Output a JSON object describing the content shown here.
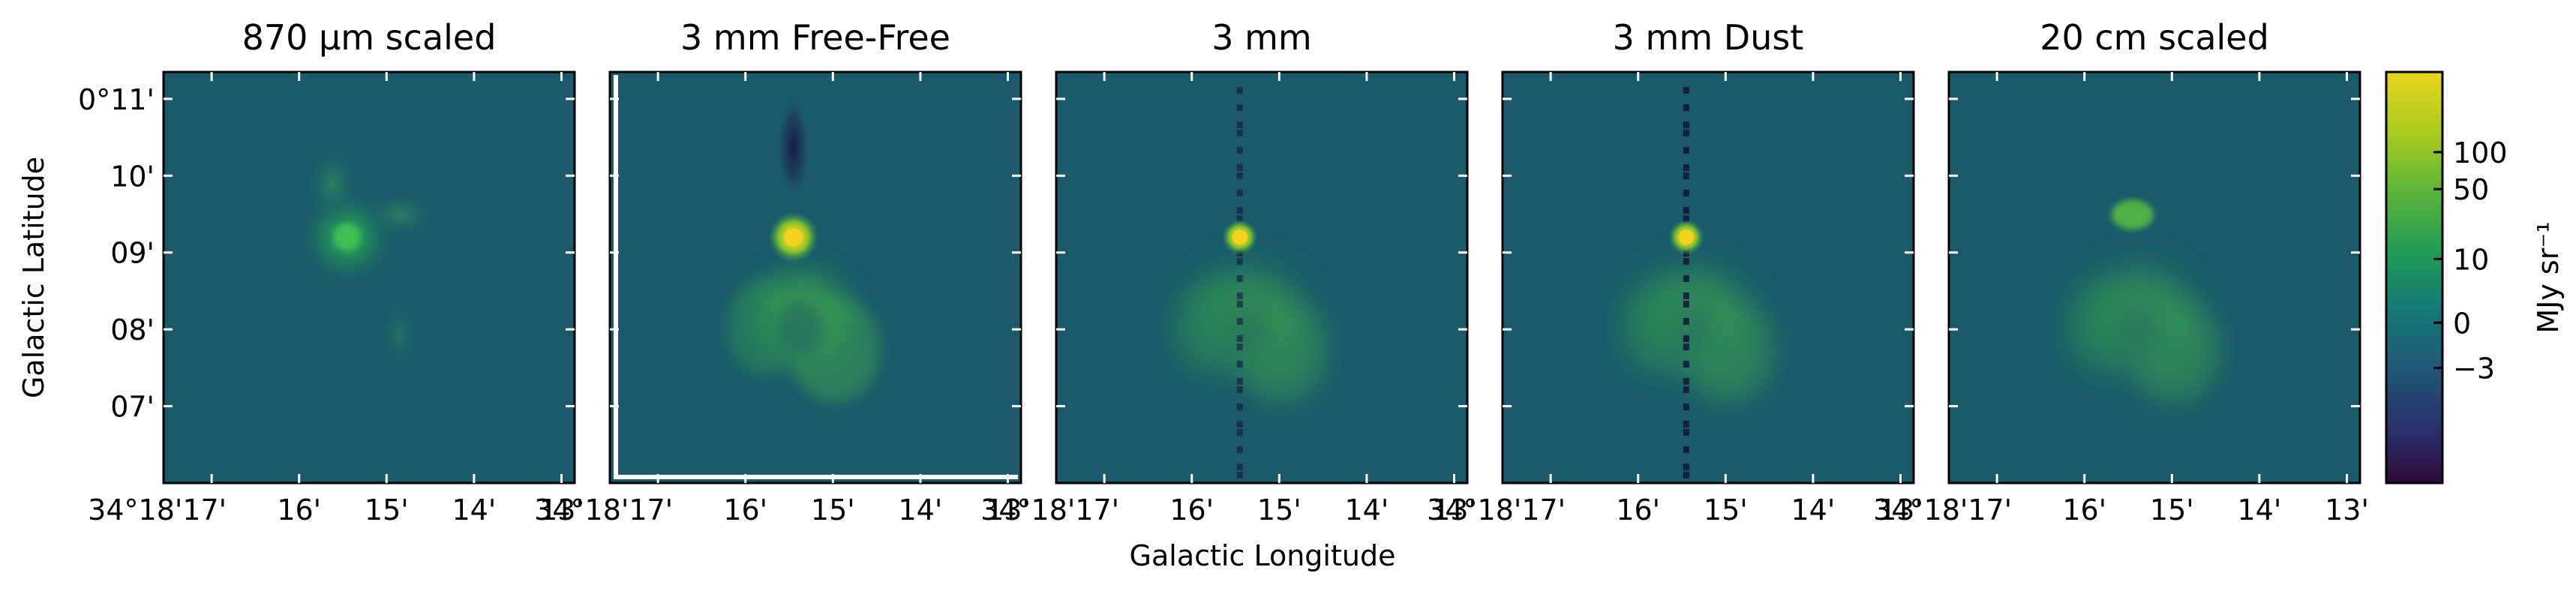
{
  "chart_data": {
    "type": "heatmap",
    "panels": [
      {
        "title": "870 μm scaled"
      },
      {
        "title": "3 mm Free-Free"
      },
      {
        "title": "3 mm"
      },
      {
        "title": "3 mm Dust"
      },
      {
        "title": "20 cm scaled"
      }
    ],
    "xlabel": "Galactic Longitude",
    "ylabel": "Galactic Latitude",
    "x_tick_labels": [
      "34°18'17'",
      "16'",
      "15'",
      "14'",
      "13'"
    ],
    "x_ticks_arcmin": [
      17,
      16,
      15,
      14,
      13
    ],
    "y_tick_labels": [
      "0°11'",
      "10'",
      "09'",
      "08'",
      "07'"
    ],
    "y_ticks_arcmin": [
      11,
      10,
      9,
      8,
      7
    ],
    "colorbar": {
      "label": "MJy sr⁻¹",
      "tick_labels": [
        "100",
        "50",
        "10",
        "0",
        "−3"
      ],
      "tick_values": [
        100,
        50,
        10,
        0,
        -3
      ],
      "colormap": [
        "#2d0a3a",
        "#2a2e6a",
        "#1f5d78",
        "#157878",
        "#1f9a58",
        "#57b33b",
        "#a8cc1e",
        "#e8d41c"
      ]
    },
    "background_color": "#1a5a6a",
    "peak_color": "#f5d21c"
  }
}
